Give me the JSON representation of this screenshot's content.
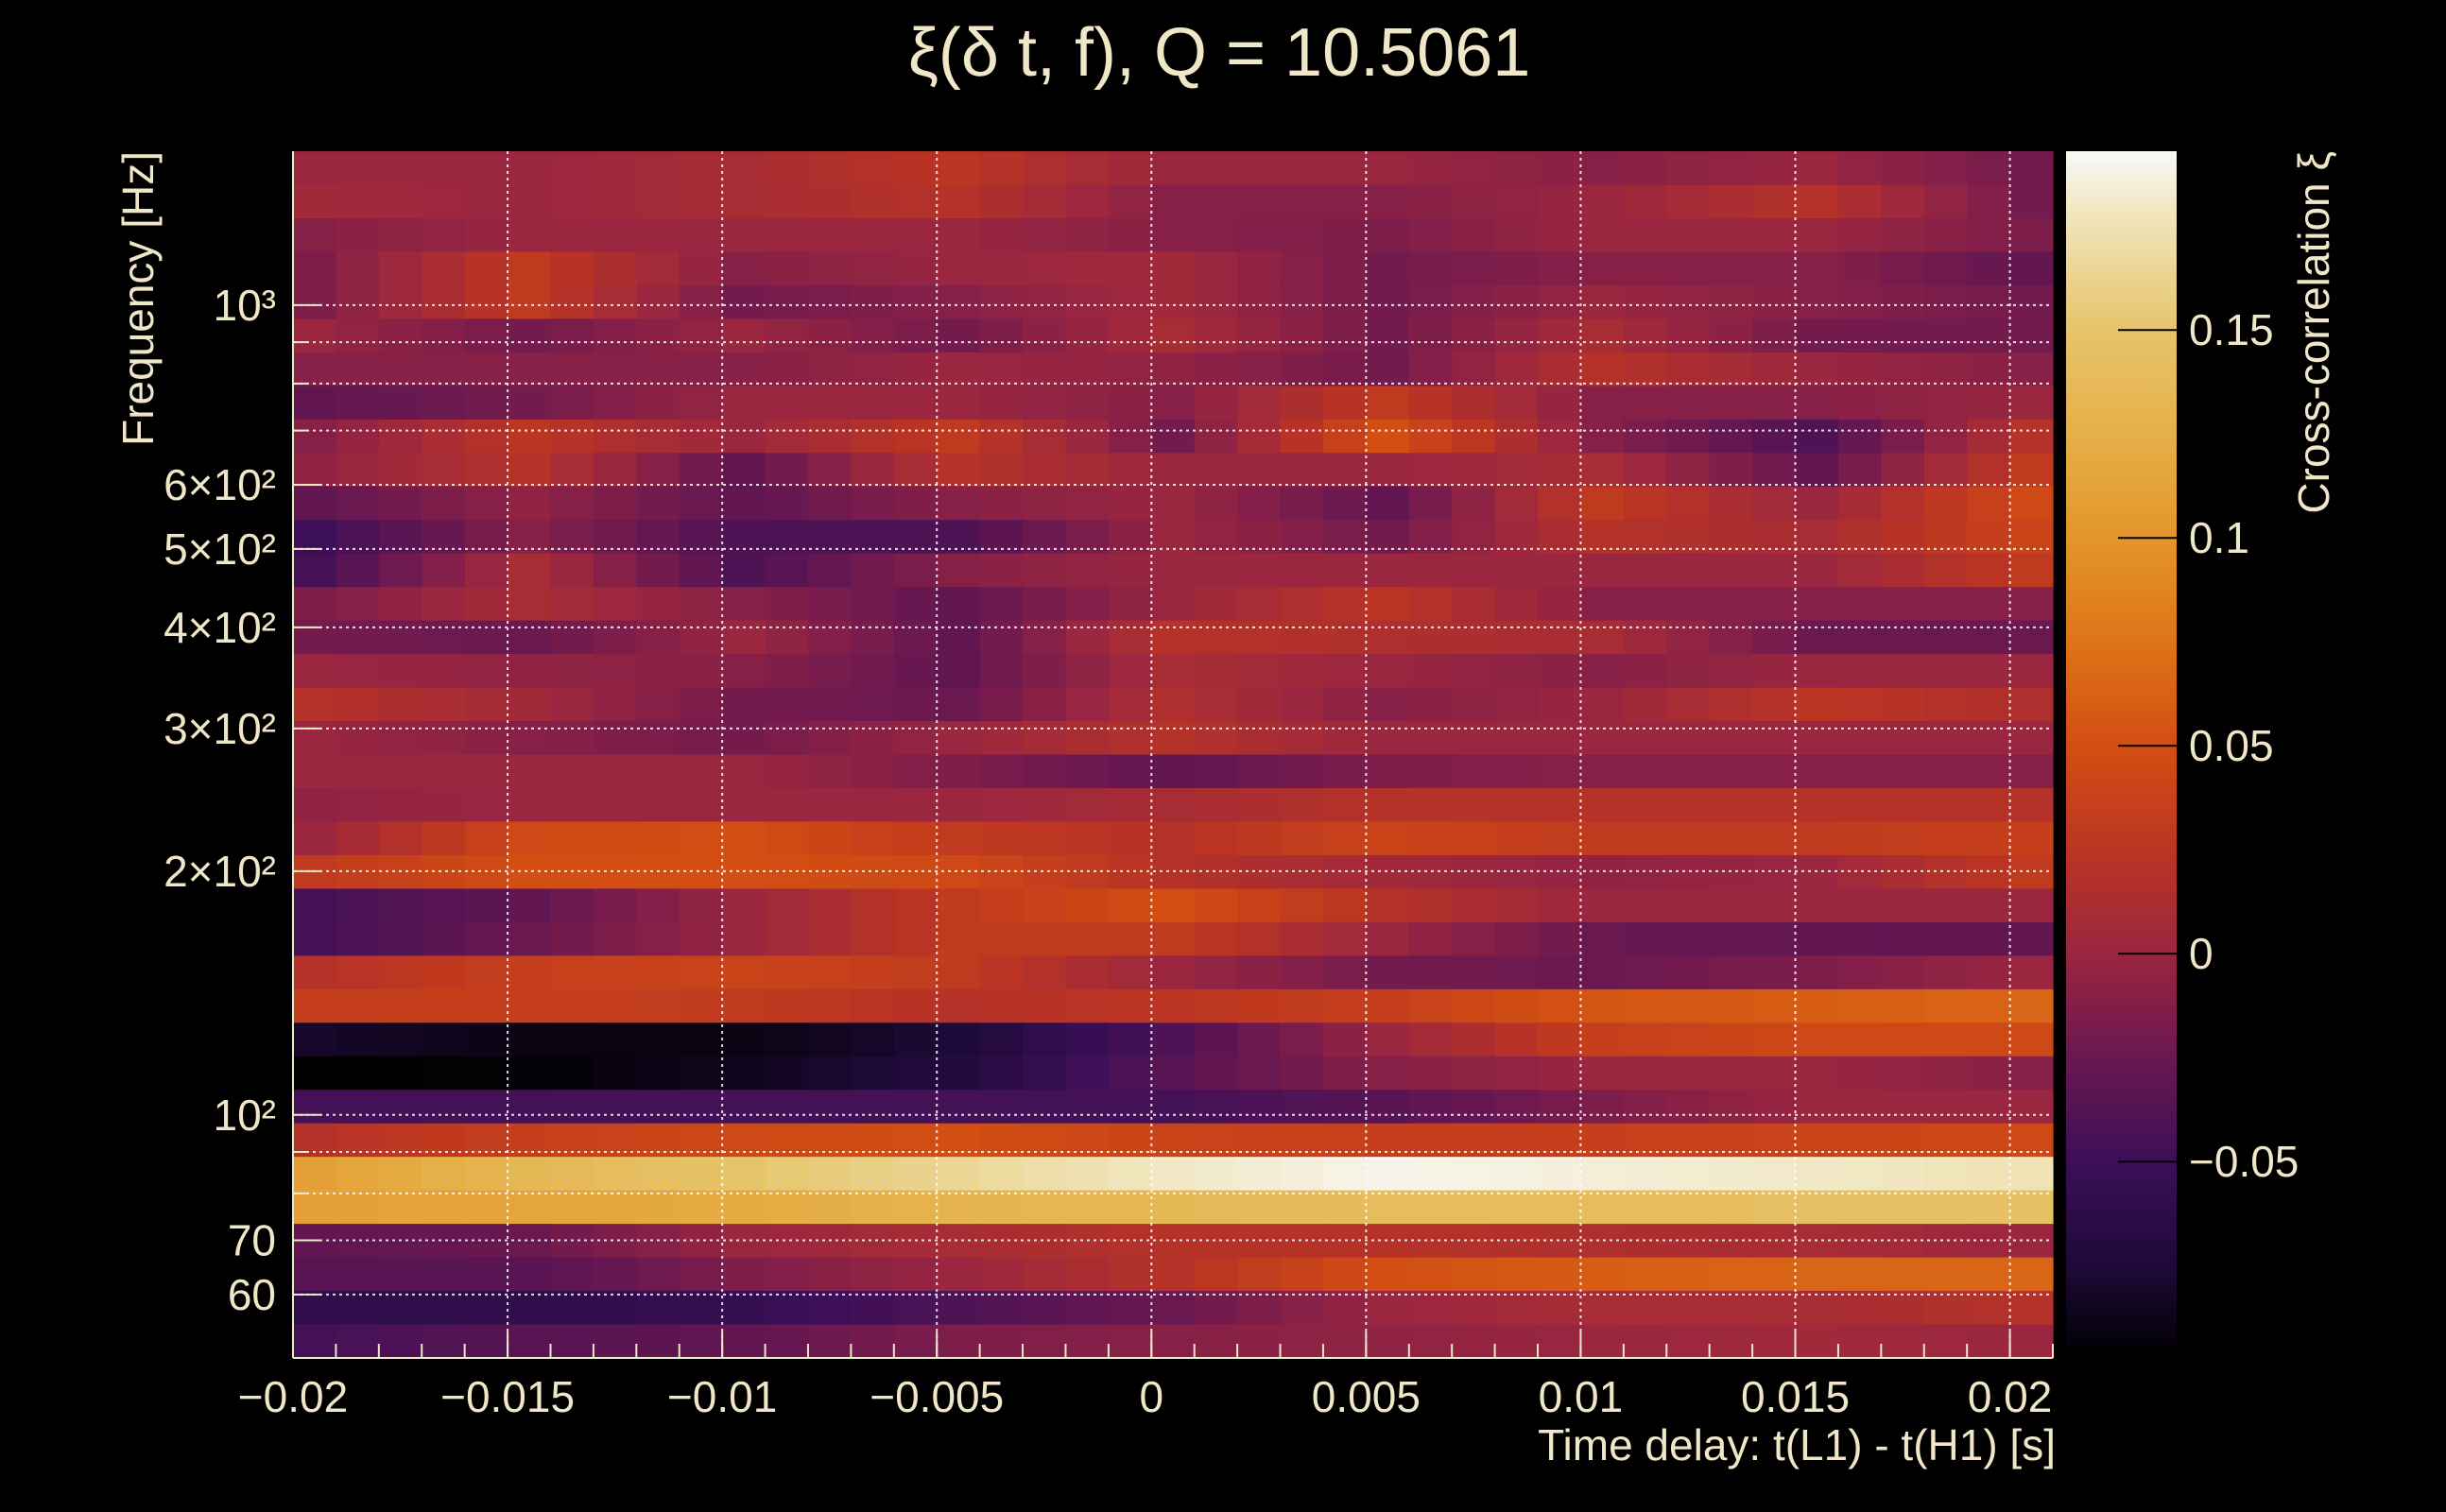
{
  "chart_data": {
    "type": "heatmap",
    "title": "ξ(δ t, f), Q = 10.5061",
    "xlabel": "Time delay: t(L1) - t(H1) [s]",
    "ylabel": "Frequency [Hz]",
    "colorbar_label": "Cross-correlation ξ",
    "xlim": [
      -0.02,
      0.021
    ],
    "ylim": [
      50.1,
      1549
    ],
    "yscale": "log",
    "grid": true,
    "x_ticks": [
      {
        "value": -0.02,
        "label": "−0.02"
      },
      {
        "value": -0.015,
        "label": "−0.015"
      },
      {
        "value": -0.01,
        "label": "−0.01"
      },
      {
        "value": -0.005,
        "label": "−0.005"
      },
      {
        "value": 0,
        "label": "0"
      },
      {
        "value": 0.005,
        "label": "0.005"
      },
      {
        "value": 0.01,
        "label": "0.01"
      },
      {
        "value": 0.015,
        "label": "0.015"
      },
      {
        "value": 0.02,
        "label": "0.02"
      }
    ],
    "y_ticks": [
      {
        "value": 60,
        "label": "60"
      },
      {
        "value": 70,
        "label": "70"
      },
      {
        "value": 100,
        "label": "10²"
      },
      {
        "value": 200,
        "label": "2×10²"
      },
      {
        "value": 300,
        "label": "3×10²"
      },
      {
        "value": 400,
        "label": "4×10²"
      },
      {
        "value": 500,
        "label": "5×10²"
      },
      {
        "value": 600,
        "label": "6×10²"
      },
      {
        "value": 1000,
        "label": "10³"
      }
    ],
    "y_minor_ticks": [
      80,
      90,
      700,
      800,
      900
    ],
    "colorbar": {
      "range": [
        -0.097,
        0.193
      ],
      "ticks": [
        {
          "value": -0.05,
          "label": "−0.05"
        },
        {
          "value": 0,
          "label": "0"
        },
        {
          "value": 0.05,
          "label": "0.05"
        },
        {
          "value": 0.1,
          "label": "0.1"
        },
        {
          "value": 0.15,
          "label": "0.15"
        }
      ]
    },
    "colormap": [
      {
        "value": -0.097,
        "color": "#000000"
      },
      {
        "value": -0.075,
        "color": "#1e0a38"
      },
      {
        "value": -0.05,
        "color": "#3c0f58"
      },
      {
        "value": -0.025,
        "color": "#6a1850"
      },
      {
        "value": 0,
        "color": "#9a2640"
      },
      {
        "value": 0.025,
        "color": "#bc3522"
      },
      {
        "value": 0.05,
        "color": "#d24e12"
      },
      {
        "value": 0.075,
        "color": "#de7418"
      },
      {
        "value": 0.1,
        "color": "#e3952a"
      },
      {
        "value": 0.125,
        "color": "#e5b048"
      },
      {
        "value": 0.15,
        "color": "#e6c46a"
      },
      {
        "value": 0.175,
        "color": "#efe2b4"
      },
      {
        "value": 0.193,
        "color": "#f8f8f6"
      }
    ],
    "time_bins": {
      "start": -0.02,
      "width": 0.001,
      "count": 41
    },
    "freq_bins": {
      "start": 50.1,
      "ratio": 1.1,
      "count": 36
    },
    "control_times": [
      -0.02,
      -0.015,
      -0.01,
      -0.005,
      0,
      0.005,
      0.01,
      0.015,
      0.02
    ],
    "rows_high_to_low_freq": [
      [
        0,
        0,
        0.01,
        0.025,
        0,
        0,
        -0.01,
        0,
        -0.02
      ],
      [
        0.005,
        0,
        0.01,
        0.02,
        -0.01,
        -0.01,
        0,
        0.02,
        -0.02
      ],
      [
        -0.01,
        0,
        0,
        0,
        -0.01,
        -0.015,
        0,
        0,
        -0.015
      ],
      [
        -0.015,
        0.03,
        -0.01,
        0,
        0.005,
        -0.02,
        -0.01,
        -0.01,
        -0.03
      ],
      [
        -0.015,
        0.03,
        -0.02,
        -0.01,
        0.005,
        -0.02,
        0,
        -0.01,
        -0.02
      ],
      [
        0,
        -0.02,
        0,
        -0.02,
        0.01,
        -0.02,
        0.01,
        -0.02,
        -0.02
      ],
      [
        -0.01,
        -0.01,
        -0.01,
        0,
        -0.005,
        -0.02,
        0.02,
        0,
        -0.01
      ],
      [
        -0.03,
        -0.02,
        0,
        0,
        -0.01,
        0.03,
        -0.01,
        -0.01,
        0
      ],
      [
        -0.01,
        0.025,
        0,
        0.03,
        -0.02,
        0.05,
        -0.01,
        -0.04,
        0.02
      ],
      [
        -0.005,
        0.02,
        -0.03,
        0.02,
        0,
        0,
        0.01,
        -0.03,
        0.03
      ],
      [
        -0.03,
        -0.005,
        -0.03,
        -0.01,
        0,
        -0.03,
        0.03,
        0,
        0.045
      ],
      [
        -0.05,
        -0.01,
        -0.04,
        -0.04,
        0,
        -0.02,
        0.02,
        0.01,
        0.04
      ],
      [
        -0.045,
        0.01,
        -0.04,
        -0.01,
        0,
        0,
        0,
        0,
        0.03
      ],
      [
        -0.015,
        0.01,
        -0.01,
        -0.03,
        0,
        0.025,
        -0.01,
        -0.01,
        -0.01
      ],
      [
        -0.02,
        -0.025,
        0,
        -0.03,
        0.02,
        0.015,
        0.01,
        -0.025,
        -0.025
      ],
      [
        0,
        -0.005,
        -0.01,
        -0.03,
        0.01,
        0,
        -0.01,
        0,
        0
      ],
      [
        0.02,
        0.005,
        -0.02,
        -0.025,
        0.015,
        -0.01,
        0,
        0.025,
        0.015
      ],
      [
        0,
        -0.01,
        -0.02,
        0,
        0.02,
        0,
        0,
        0,
        0
      ],
      [
        0,
        0,
        0,
        -0.015,
        -0.03,
        -0.015,
        -0.01,
        -0.01,
        -0.01
      ],
      [
        -0.005,
        0,
        0,
        0,
        0.01,
        0.02,
        0.02,
        0.02,
        0.02
      ],
      [
        0,
        0.045,
        0.05,
        0.03,
        0.02,
        0.04,
        0.03,
        0.03,
        0.035
      ],
      [
        0.03,
        0.05,
        0.05,
        0.045,
        0.02,
        0.005,
        -0.005,
        0,
        0.03
      ],
      [
        -0.045,
        -0.03,
        0,
        0.03,
        0.05,
        0.02,
        0,
        0,
        0
      ],
      [
        -0.045,
        -0.025,
        0,
        0.03,
        0.03,
        0,
        -0.025,
        -0.03,
        -0.03
      ],
      [
        0.02,
        0.035,
        0.04,
        0.03,
        0,
        -0.02,
        -0.025,
        -0.015,
        0
      ],
      [
        0.035,
        0.035,
        0.03,
        0.02,
        0.025,
        0.035,
        0.055,
        0.06,
        0.065
      ],
      [
        -0.08,
        -0.09,
        -0.09,
        -0.075,
        -0.04,
        0,
        0.035,
        0.045,
        0.045
      ],
      [
        -0.097,
        -0.095,
        -0.085,
        -0.07,
        -0.035,
        -0.01,
        0,
        0,
        -0.01
      ],
      [
        -0.045,
        -0.045,
        -0.045,
        -0.045,
        -0.045,
        -0.035,
        -0.015,
        0,
        0
      ],
      [
        0.02,
        0.035,
        0.045,
        0.05,
        0.04,
        0.035,
        0.035,
        0.04,
        0.045
      ],
      [
        0.11,
        0.135,
        0.15,
        0.165,
        0.18,
        0.19,
        0.185,
        0.18,
        0.175
      ],
      [
        0.11,
        0.115,
        0.12,
        0.13,
        0.135,
        0.14,
        0.14,
        0.145,
        0.145
      ],
      [
        -0.03,
        -0.025,
        0,
        0.01,
        0.02,
        0.02,
        0.015,
        0.01,
        0
      ],
      [
        -0.035,
        -0.035,
        -0.015,
        0,
        0.02,
        0.05,
        0.06,
        0.065,
        0.065
      ],
      [
        -0.06,
        -0.06,
        -0.055,
        -0.04,
        -0.025,
        0,
        0.01,
        0.01,
        0.02
      ],
      [
        -0.045,
        -0.035,
        -0.03,
        -0.015,
        -0.01,
        -0.005,
        0,
        0.005,
        0
      ]
    ]
  }
}
